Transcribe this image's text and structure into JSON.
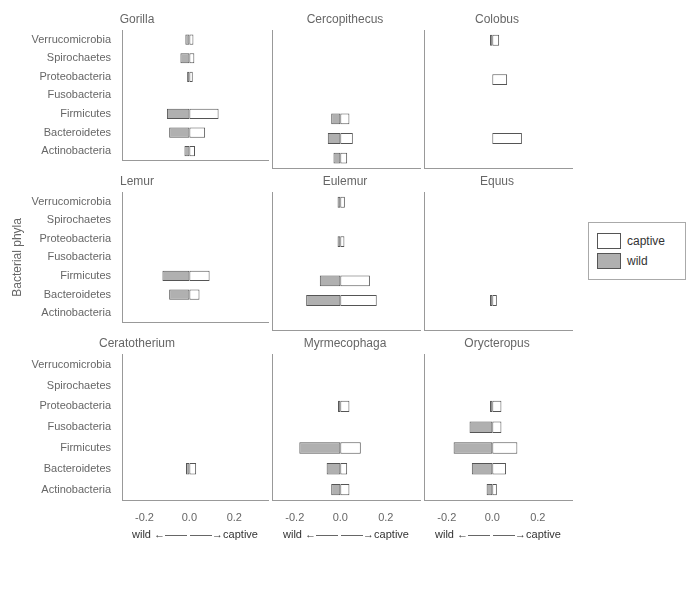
{
  "chart_data": [
    {
      "type": "bar",
      "orientation": "horizontal",
      "title": "Gorilla",
      "tick_labels": "y",
      "categories": [
        "Verrucomicrobia",
        "Spirochaetes",
        "Proteobacteria",
        "Fusobacteria",
        "Firmicutes",
        "Bacteroidetes",
        "Actinobacteria"
      ],
      "series": [
        {
          "name": "captive",
          "color": "#ffffff",
          "values": [
            0.018,
            0.022,
            0.015,
            0.0,
            0.13,
            0.07,
            0.025
          ]
        },
        {
          "name": "wild",
          "color": "#b0b0b0",
          "values": [
            -0.018,
            -0.04,
            -0.01,
            0.0,
            -0.1,
            -0.09,
            -0.022
          ]
        }
      ],
      "xlim": [
        -0.3,
        0.35
      ],
      "xticks": [
        -0.2,
        {
          "value": 0.0,
          "label": "0.0"
        },
        0.2
      ],
      "grid": false
    },
    {
      "type": "bar",
      "orientation": "horizontal",
      "title": "Cercopithecus",
      "tick_labels": false,
      "categories": [
        "Verrucomicrobia",
        "Spirochaetes",
        "Proteobacteria",
        "Fusobacteria",
        "Firmicutes",
        "Bacteroidetes",
        "Actinobacteria"
      ],
      "series": [
        {
          "name": "captive",
          "color": "#ffffff",
          "values": [
            0.0,
            0.0,
            0.0,
            0.0,
            0.04,
            0.055,
            0.03
          ]
        },
        {
          "name": "wild",
          "color": "#b0b0b0",
          "values": [
            0.0,
            0.0,
            0.0,
            0.0,
            -0.04,
            -0.055,
            -0.03
          ]
        }
      ],
      "xlim": [
        -0.3,
        0.35
      ],
      "xticks": [
        -0.2,
        {
          "value": 0.0,
          "label": "0.0"
        },
        0.2
      ],
      "grid": false
    },
    {
      "type": "bar",
      "orientation": "horizontal",
      "title": "Colobus",
      "tick_labels": false,
      "categories": [
        "Verrucomicrobia",
        "Spirochaetes",
        "Proteobacteria",
        "Fusobacteria",
        "Firmicutes",
        "Bacteroidetes",
        "Actinobacteria"
      ],
      "series": [
        {
          "name": "captive",
          "color": "#ffffff",
          "values": [
            0.03,
            0.0,
            0.065,
            0.0,
            0.0,
            0.13,
            0.0
          ]
        },
        {
          "name": "wild",
          "color": "#b0b0b0",
          "values": [
            -0.01,
            0.0,
            0.0,
            0.0,
            0.0,
            0.0,
            0.0
          ]
        }
      ],
      "xlim": [
        -0.3,
        0.35
      ],
      "xticks": [
        -0.2,
        {
          "value": 0.0,
          "label": "0.0"
        },
        0.2
      ],
      "grid": false
    },
    {
      "type": "bar",
      "orientation": "horizontal",
      "title": "Lemur",
      "tick_labels": "y",
      "ylabel": "Bacterial phyla",
      "categories": [
        "Verrucomicrobia",
        "Spirochaetes",
        "Proteobacteria",
        "Fusobacteria",
        "Firmicutes",
        "Bacteroidetes",
        "Actinobacteria"
      ],
      "series": [
        {
          "name": "captive",
          "color": "#ffffff",
          "values": [
            0.0,
            0.0,
            0.0,
            0.0,
            0.09,
            0.045,
            0.0
          ]
        },
        {
          "name": "wild",
          "color": "#b0b0b0",
          "values": [
            0.0,
            0.0,
            0.0,
            0.0,
            -0.12,
            -0.09,
            0.0
          ]
        }
      ],
      "xlim": [
        -0.3,
        0.35
      ],
      "xticks": [
        -0.2,
        {
          "value": 0.0,
          "label": "0.0"
        },
        0.2
      ],
      "grid": false
    },
    {
      "type": "bar",
      "orientation": "horizontal",
      "title": "Eulemur",
      "tick_labels": false,
      "categories": [
        "Verrucomicrobia",
        "Spirochaetes",
        "Proteobacteria",
        "Fusobacteria",
        "Firmicutes",
        "Bacteroidetes",
        "Actinobacteria"
      ],
      "series": [
        {
          "name": "captive",
          "color": "#ffffff",
          "values": [
            0.02,
            0.0,
            0.018,
            0.0,
            0.13,
            0.16,
            0.0
          ]
        },
        {
          "name": "wild",
          "color": "#b0b0b0",
          "values": [
            -0.012,
            0.0,
            -0.012,
            0.0,
            -0.09,
            -0.15,
            0.0
          ]
        }
      ],
      "xlim": [
        -0.3,
        0.35
      ],
      "xticks": [
        -0.2,
        {
          "value": 0.0,
          "label": "0.0"
        },
        0.2
      ],
      "grid": false
    },
    {
      "type": "bar",
      "orientation": "horizontal",
      "title": "Equus",
      "tick_labels": false,
      "legend": "right",
      "categories": [
        "Verrucomicrobia",
        "Spirochaetes",
        "Proteobacteria",
        "Fusobacteria",
        "Firmicutes",
        "Bacteroidetes",
        "Actinobacteria"
      ],
      "series": [
        {
          "name": "captive",
          "color": "#ffffff",
          "values": [
            0.0,
            0.0,
            0.0,
            0.0,
            0.0,
            0.02,
            0.0
          ]
        },
        {
          "name": "wild",
          "color": "#b0b0b0",
          "values": [
            0.0,
            0.0,
            0.0,
            0.0,
            0.0,
            -0.01,
            0.0
          ]
        }
      ],
      "xlim": [
        -0.3,
        0.35
      ],
      "xticks": [
        -0.2,
        {
          "value": 0.0,
          "label": "0.0"
        },
        0.2
      ],
      "grid": false
    },
    {
      "type": "bar",
      "orientation": "horizontal",
      "title": "Ceratotherium",
      "xlabel": "wild ←—— ——→captive",
      "categories": [
        "Verrucomicrobia",
        "Spirochaetes",
        "Proteobacteria",
        "Fusobacteria",
        "Firmicutes",
        "Bacteroidetes",
        "Actinobacteria"
      ],
      "series": [
        {
          "name": "captive",
          "color": "#ffffff",
          "values": [
            0.0,
            0.0,
            0.0,
            0.0,
            0.0,
            0.03,
            0.0
          ]
        },
        {
          "name": "wild",
          "color": "#b0b0b0",
          "values": [
            0.0,
            0.0,
            0.0,
            0.0,
            0.0,
            -0.015,
            0.0
          ]
        }
      ],
      "xlim": [
        -0.3,
        0.35
      ],
      "xticks": [
        -0.2,
        {
          "value": 0.0,
          "label": "0.0"
        },
        0.2
      ],
      "grid": false
    },
    {
      "type": "bar",
      "orientation": "horizontal",
      "title": "Myrmecophaga",
      "tick_labels": "x",
      "xlabel": "wild ←—— ——→captive",
      "categories": [
        "Verrucomicrobia",
        "Spirochaetes",
        "Proteobacteria",
        "Fusobacteria",
        "Firmicutes",
        "Bacteroidetes",
        "Actinobacteria"
      ],
      "series": [
        {
          "name": "captive",
          "color": "#ffffff",
          "values": [
            0.0,
            0.0,
            0.04,
            0.0,
            0.09,
            0.03,
            0.04
          ]
        },
        {
          "name": "wild",
          "color": "#b0b0b0",
          "values": [
            0.0,
            0.0,
            -0.01,
            0.0,
            -0.18,
            -0.06,
            -0.04
          ]
        }
      ],
      "xlim": [
        -0.3,
        0.35
      ],
      "xticks": [
        -0.2,
        {
          "value": 0.0,
          "label": "0.0"
        },
        0.2
      ],
      "grid": false
    },
    {
      "type": "bar",
      "orientation": "horizontal",
      "title": "Orycteropus",
      "tick_labels": "x",
      "xlabel": "wild ←—— ——→captive",
      "categories": [
        "Verrucomicrobia",
        "Spirochaetes",
        "Proteobacteria",
        "Fusobacteria",
        "Firmicutes",
        "Bacteroidetes",
        "Actinobacteria"
      ],
      "series": [
        {
          "name": "captive",
          "color": "#ffffff",
          "values": [
            0.0,
            0.0,
            0.04,
            0.04,
            0.11,
            0.06,
            0.02
          ]
        },
        {
          "name": "wild",
          "color": "#b0b0b0",
          "values": [
            0.0,
            0.0,
            -0.01,
            -0.1,
            -0.17,
            -0.09,
            -0.025
          ]
        }
      ],
      "xlim": [
        -0.3,
        0.35
      ],
      "xticks": [
        -0.2,
        {
          "value": 0.0,
          "label": "0.0"
        },
        0.2
      ],
      "grid": false
    }
  ]
}
